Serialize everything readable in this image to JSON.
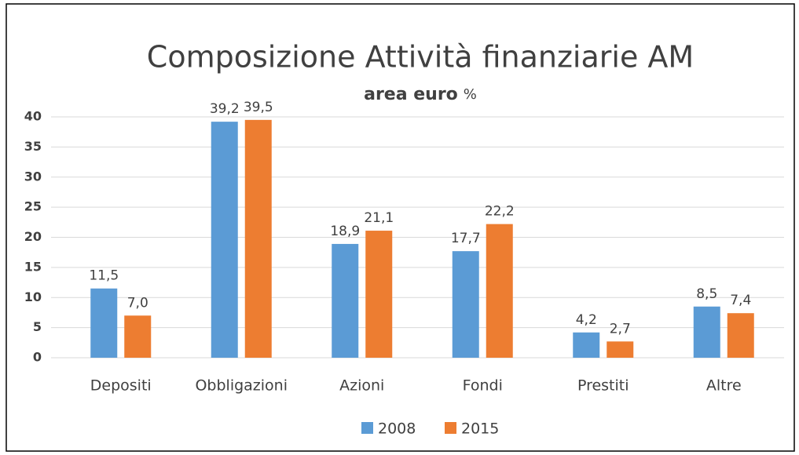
{
  "chart_data": {
    "type": "bar",
    "title": "Composizione Attività finanziarie AM",
    "subtitle": "area euro",
    "subtitle_unit": "%",
    "categories": [
      "Depositi",
      "Obbligazioni",
      "Azioni",
      "Fondi",
      "Prestiti",
      "Altre"
    ],
    "series": [
      {
        "name": "2008",
        "color": "#5b9bd5",
        "values": [
          11.5,
          39.2,
          18.9,
          17.7,
          4.2,
          8.5
        ],
        "value_labels": [
          "11,5",
          "39,2",
          "18,9",
          "17,7",
          "4,2",
          "8,5"
        ]
      },
      {
        "name": "2015",
        "color": "#ed7d31",
        "values": [
          7.0,
          39.5,
          21.1,
          22.2,
          2.7,
          7.4
        ],
        "value_labels": [
          "7,0",
          "39,5",
          "21,1",
          "22,2",
          "2,7",
          "7,4"
        ]
      }
    ],
    "ylim": [
      0,
      40
    ],
    "yticks": [
      0,
      5,
      10,
      15,
      20,
      25,
      30,
      35,
      40
    ],
    "grid": true,
    "legend": "bottom"
  }
}
